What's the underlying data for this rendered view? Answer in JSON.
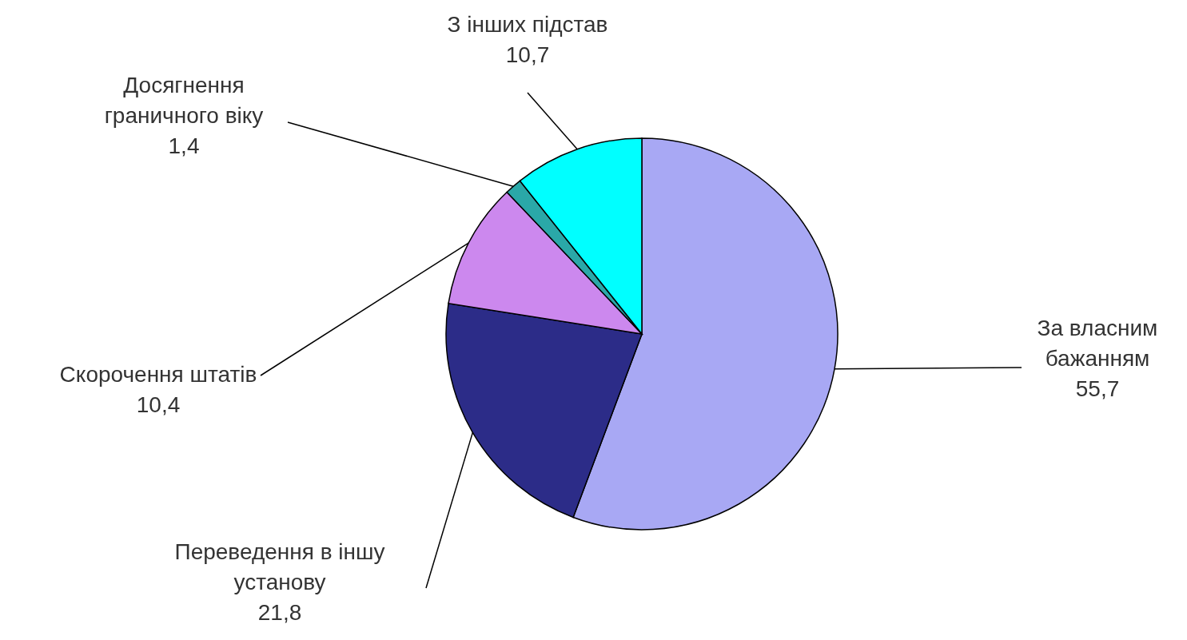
{
  "chart_data": {
    "type": "pie",
    "categories": [
      "За власним бажанням",
      "Переведення в іншу установу",
      "Скорочення штатів",
      "Досягнення граничного віку",
      "З інших підстав"
    ],
    "values": [
      55.7,
      21.8,
      10.4,
      1.4,
      10.7
    ],
    "value_labels": [
      "55,7",
      "21,8",
      "10,4",
      "1,4",
      "10,7"
    ],
    "colors": [
      "#a8a8f4",
      "#2c2c88",
      "#cc88ee",
      "#2aa8a8",
      "#00ffff"
    ]
  }
}
